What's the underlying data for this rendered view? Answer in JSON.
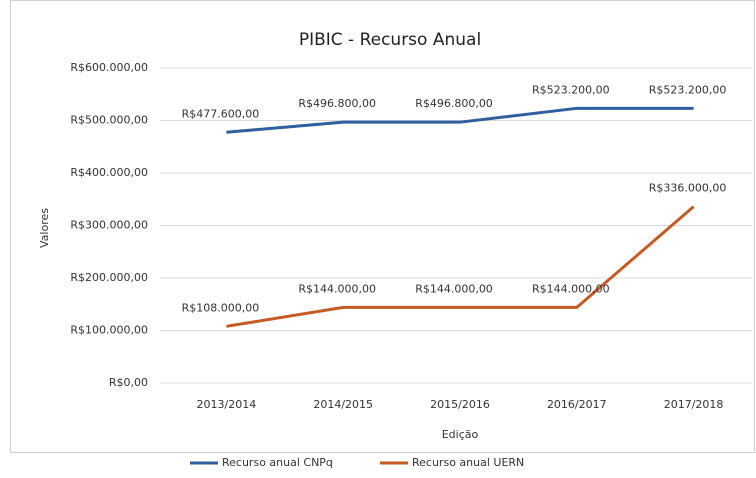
{
  "chart_data": {
    "type": "line",
    "title": "PIBIC - Recurso Anual",
    "x_label": "Edição",
    "y_label": "Valores",
    "categories": [
      "2013/2014",
      "2014/2015",
      "2015/2016",
      "2016/2017",
      "2017/2018"
    ],
    "series": [
      {
        "name": "Recurso anual CNPq",
        "color": "#2e5f9e",
        "values": [
          477600,
          496800,
          496800,
          523200,
          523200
        ],
        "value_labels": [
          "R$477.600,00",
          "R$496.800,00",
          "R$496.800,00",
          "R$523.200,00",
          "R$523.200,00"
        ]
      },
      {
        "name": "Recurso anual UERN",
        "color": "#c55a22",
        "values": [
          108000,
          144000,
          144000,
          144000,
          336000
        ],
        "value_labels": [
          "R$108.000,00",
          "R$144.000,00",
          "R$144.000,00",
          "R$144.000,00",
          "R$336.000,00"
        ]
      }
    ],
    "ylim": [
      0,
      600000
    ],
    "yticks": [
      {
        "value": 0,
        "label": "R$0,00"
      },
      {
        "value": 100000,
        "label": "R$100.000,00"
      },
      {
        "value": 200000,
        "label": "R$200.000,00"
      },
      {
        "value": 300000,
        "label": "R$300.000,00"
      },
      {
        "value": 400000,
        "label": "R$400.000,00"
      },
      {
        "value": 500000,
        "label": "R$500.000,00"
      },
      {
        "value": 600000,
        "label": "R$600.000,00"
      }
    ],
    "grid": true,
    "legend": "bottom"
  }
}
